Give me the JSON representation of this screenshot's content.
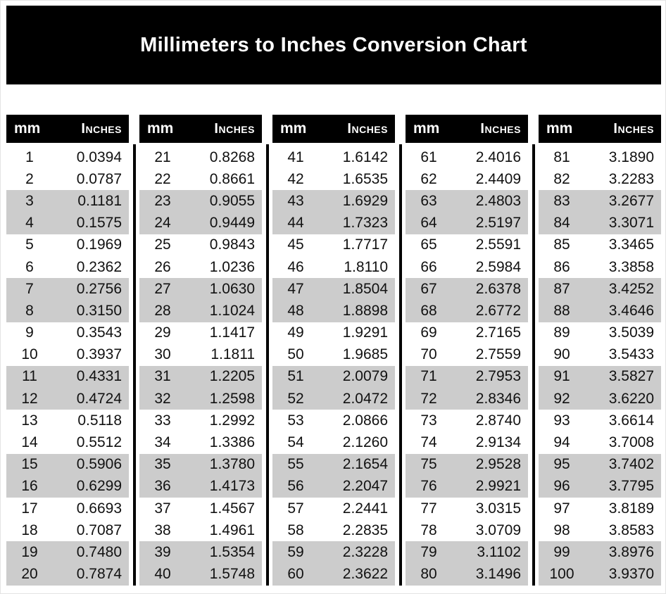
{
  "page": {
    "title": "Millimeters to Inches Conversion Chart"
  },
  "table_header": {
    "mm": "mm",
    "inches": "Inches"
  },
  "colors": {
    "banner_bg": "#000000",
    "banner_text": "#ffffff",
    "column_header_bg": "#000000",
    "column_header_text": "#ffffff",
    "row_shaded_bg": "#cccccc",
    "row_plain_bg": "#ffffff",
    "divider": "#000000",
    "body_text": "#111111"
  },
  "tables": [
    {
      "range": "1-20",
      "rows": [
        [
          "1",
          "0.0394"
        ],
        [
          "2",
          "0.0787"
        ],
        [
          "3",
          "0.1181"
        ],
        [
          "4",
          "0.1575"
        ],
        [
          "5",
          "0.1969"
        ],
        [
          "6",
          "0.2362"
        ],
        [
          "7",
          "0.2756"
        ],
        [
          "8",
          "0.3150"
        ],
        [
          "9",
          "0.3543"
        ],
        [
          "10",
          "0.3937"
        ],
        [
          "11",
          "0.4331"
        ],
        [
          "12",
          "0.4724"
        ],
        [
          "13",
          "0.5118"
        ],
        [
          "14",
          "0.5512"
        ],
        [
          "15",
          "0.5906"
        ],
        [
          "16",
          "0.6299"
        ],
        [
          "17",
          "0.6693"
        ],
        [
          "18",
          "0.7087"
        ],
        [
          "19",
          "0.7480"
        ],
        [
          "20",
          "0.7874"
        ]
      ]
    },
    {
      "range": "21-40",
      "rows": [
        [
          "21",
          "0.8268"
        ],
        [
          "22",
          "0.8661"
        ],
        [
          "23",
          "0.9055"
        ],
        [
          "24",
          "0.9449"
        ],
        [
          "25",
          "0.9843"
        ],
        [
          "26",
          "1.0236"
        ],
        [
          "27",
          "1.0630"
        ],
        [
          "28",
          "1.1024"
        ],
        [
          "29",
          "1.1417"
        ],
        [
          "30",
          "1.1811"
        ],
        [
          "31",
          "1.2205"
        ],
        [
          "32",
          "1.2598"
        ],
        [
          "33",
          "1.2992"
        ],
        [
          "34",
          "1.3386"
        ],
        [
          "35",
          "1.3780"
        ],
        [
          "36",
          "1.4173"
        ],
        [
          "37",
          "1.4567"
        ],
        [
          "38",
          "1.4961"
        ],
        [
          "39",
          "1.5354"
        ],
        [
          "40",
          "1.5748"
        ]
      ]
    },
    {
      "range": "41-60",
      "rows": [
        [
          "41",
          "1.6142"
        ],
        [
          "42",
          "1.6535"
        ],
        [
          "43",
          "1.6929"
        ],
        [
          "44",
          "1.7323"
        ],
        [
          "45",
          "1.7717"
        ],
        [
          "46",
          "1.8110"
        ],
        [
          "47",
          "1.8504"
        ],
        [
          "48",
          "1.8898"
        ],
        [
          "49",
          "1.9291"
        ],
        [
          "50",
          "1.9685"
        ],
        [
          "51",
          "2.0079"
        ],
        [
          "52",
          "2.0472"
        ],
        [
          "53",
          "2.0866"
        ],
        [
          "54",
          "2.1260"
        ],
        [
          "55",
          "2.1654"
        ],
        [
          "56",
          "2.2047"
        ],
        [
          "57",
          "2.2441"
        ],
        [
          "58",
          "2.2835"
        ],
        [
          "59",
          "2.3228"
        ],
        [
          "60",
          "2.3622"
        ]
      ]
    },
    {
      "range": "61-80",
      "rows": [
        [
          "61",
          "2.4016"
        ],
        [
          "62",
          "2.4409"
        ],
        [
          "63",
          "2.4803"
        ],
        [
          "64",
          "2.5197"
        ],
        [
          "65",
          "2.5591"
        ],
        [
          "66",
          "2.5984"
        ],
        [
          "67",
          "2.6378"
        ],
        [
          "68",
          "2.6772"
        ],
        [
          "69",
          "2.7165"
        ],
        [
          "70",
          "2.7559"
        ],
        [
          "71",
          "2.7953"
        ],
        [
          "72",
          "2.8346"
        ],
        [
          "73",
          "2.8740"
        ],
        [
          "74",
          "2.9134"
        ],
        [
          "75",
          "2.9528"
        ],
        [
          "76",
          "2.9921"
        ],
        [
          "77",
          "3.0315"
        ],
        [
          "78",
          "3.0709"
        ],
        [
          "79",
          "3.1102"
        ],
        [
          "80",
          "3.1496"
        ]
      ]
    },
    {
      "range": "81-100",
      "rows": [
        [
          "81",
          "3.1890"
        ],
        [
          "82",
          "3.2283"
        ],
        [
          "83",
          "3.2677"
        ],
        [
          "84",
          "3.3071"
        ],
        [
          "85",
          "3.3465"
        ],
        [
          "86",
          "3.3858"
        ],
        [
          "87",
          "3.4252"
        ],
        [
          "88",
          "3.4646"
        ],
        [
          "89",
          "3.5039"
        ],
        [
          "90",
          "3.5433"
        ],
        [
          "91",
          "3.5827"
        ],
        [
          "92",
          "3.6220"
        ],
        [
          "93",
          "3.6614"
        ],
        [
          "94",
          "3.7008"
        ],
        [
          "95",
          "3.7402"
        ],
        [
          "96",
          "3.7795"
        ],
        [
          "97",
          "3.8189"
        ],
        [
          "98",
          "3.8583"
        ],
        [
          "99",
          "3.8976"
        ],
        [
          "100",
          "3.9370"
        ]
      ]
    }
  ]
}
